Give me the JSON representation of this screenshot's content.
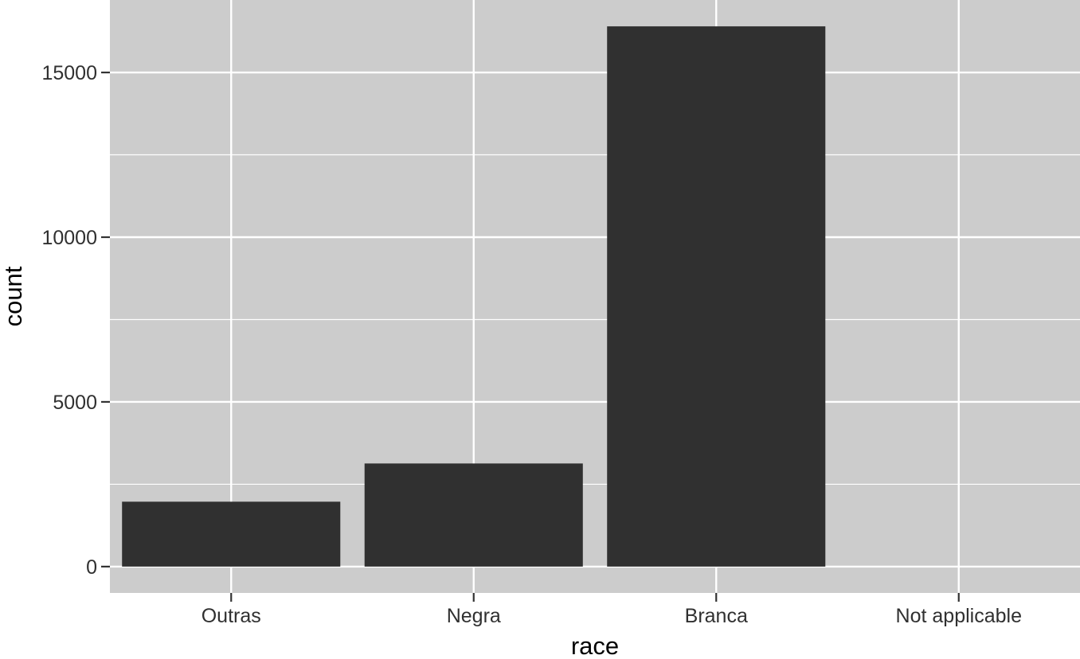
{
  "chart_data": {
    "type": "bar",
    "title": "",
    "xlabel": "race",
    "ylabel": "count",
    "categories": [
      "Outras",
      "Negra",
      "Branca",
      "Not applicable"
    ],
    "values": [
      1970,
      3130,
      16400,
      0
    ],
    "ylim": [
      -800,
      17200
    ],
    "yticks": [
      0,
      5000,
      10000,
      15000
    ],
    "ytick_labels": [
      "0",
      "5000",
      "10000",
      "15000"
    ],
    "grid": true,
    "legend": "none",
    "colors": {
      "bar": "#303030",
      "panel": "#cccccc",
      "grid": "#ffffff"
    }
  }
}
